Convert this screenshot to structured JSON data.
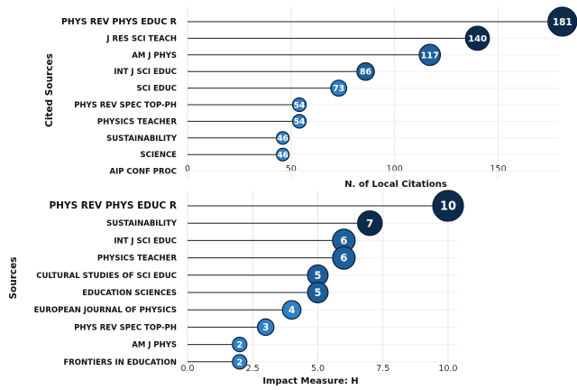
{
  "chart_data": [
    {
      "type": "lollipop",
      "xlabel": "N. of Local Citations",
      "ylabel": "Cited Sources",
      "xlim": [
        0,
        175
      ],
      "xticks": [
        0,
        50,
        100,
        150
      ],
      "grid": true,
      "categories": [
        "PHYS REV PHYS EDUC R",
        "J RES SCI TEACH",
        "AM J PHYS",
        "INT J SCI EDUC",
        "SCI EDUC",
        "PHYS REV SPEC TOP-PH",
        "PHYSICS TEACHER",
        "SUSTAINABILITY",
        "SCIENCE",
        "AIP CONF PROC"
      ],
      "values": [
        181,
        140,
        117,
        86,
        73,
        54,
        54,
        46,
        46,
        null
      ]
    },
    {
      "type": "lollipop",
      "xlabel": "Impact Measure: H",
      "ylabel": "Sources",
      "xlim": [
        0,
        10
      ],
      "xticks": [
        "0.0",
        "2.5",
        "5.0",
        "7.5",
        "10.0"
      ],
      "grid": true,
      "categories": [
        "PHYS REV PHYS EDUC R",
        "SUSTAINABILITY",
        "INT J SCI EDUC",
        "PHYSICS TEACHER",
        "CULTURAL STUDIES OF SCI EDUC",
        "EDUCATION SCIENCES",
        "EUROPEAN JOURNAL OF PHYSICS",
        "PHYS REV SPEC TOP-PH",
        "AM J PHYS",
        "FRONTIERS IN EDUCATION"
      ],
      "values": [
        10,
        7,
        6,
        6,
        5,
        5,
        4,
        3,
        2,
        2
      ]
    }
  ],
  "colors": {
    "dark": "#0f2b4c",
    "mid": "#1f5f99",
    "light": "#2f80c4",
    "grid": "#e6e6e6",
    "line": "#222222"
  }
}
